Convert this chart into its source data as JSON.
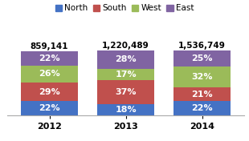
{
  "years": [
    "2012",
    "2013",
    "2014"
  ],
  "totals": [
    "859,141",
    "1,220,489",
    "1,536,749"
  ],
  "segments": {
    "North": [
      22,
      18,
      22
    ],
    "South": [
      29,
      37,
      21
    ],
    "West": [
      26,
      17,
      32
    ],
    "East": [
      22,
      28,
      25
    ]
  },
  "colors": {
    "North": "#4472C4",
    "South": "#C0504D",
    "West": "#9BBB59",
    "East": "#8064A2"
  },
  "legend_order": [
    "North",
    "South",
    "West",
    "East"
  ],
  "bar_width": 0.75,
  "background_color": "#FFFFFF",
  "text_color_bar": "#FFFFFF",
  "text_color_total": "#000000",
  "fontsize_bar": 8,
  "fontsize_total": 7.5,
  "fontsize_legend": 7.5,
  "fontsize_xtick": 8
}
